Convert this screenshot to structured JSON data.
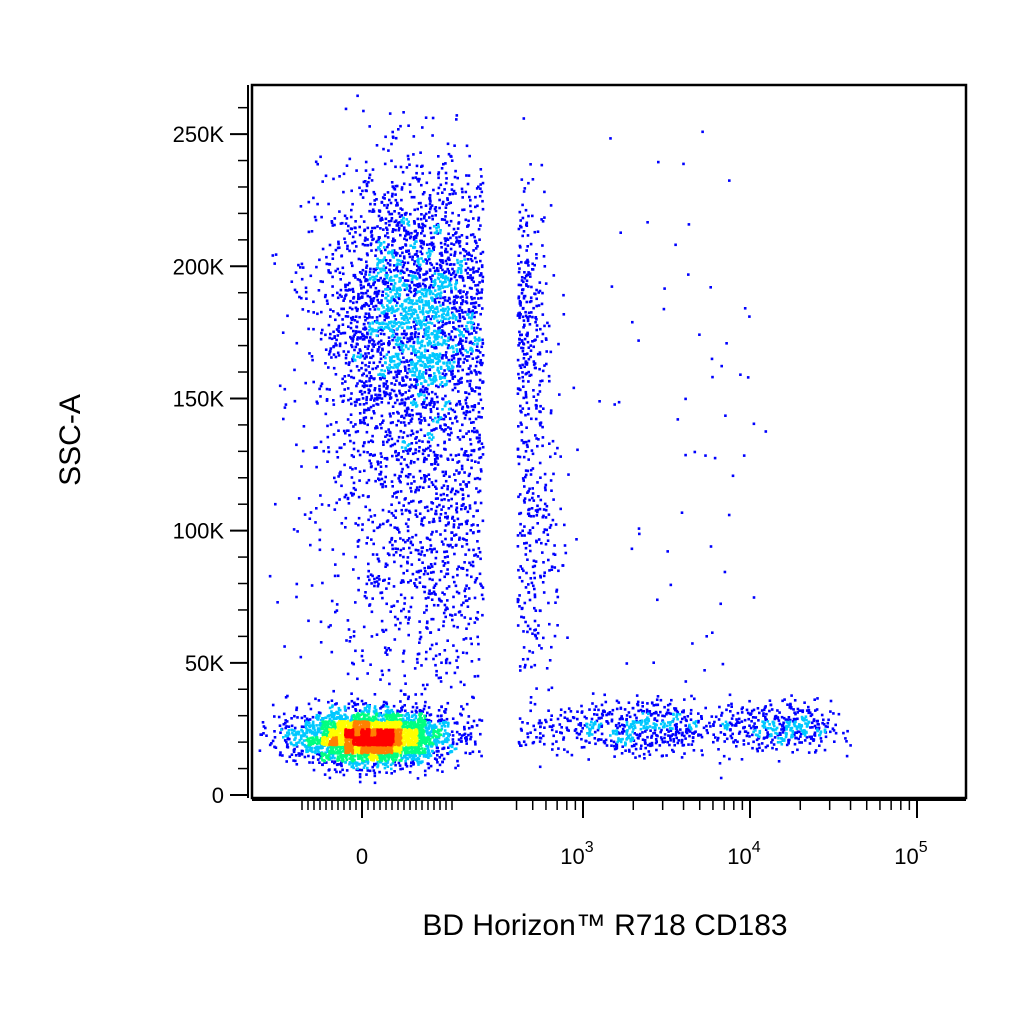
{
  "chart_data": {
    "type": "scatter",
    "style": "flow-cytometry pseudocolor density dot plot",
    "title": "",
    "xlabel": "BD Horizon™ R718 CD183",
    "ylabel": "SSC-A",
    "x_scale": "biexponential",
    "y_scale": "linear",
    "ylim": [
      0,
      262144
    ],
    "y_ticks": [
      {
        "value": 0,
        "label": "0"
      },
      {
        "value": 50000,
        "label": "50K"
      },
      {
        "value": 100000,
        "label": "100K"
      },
      {
        "value": 150000,
        "label": "150K"
      },
      {
        "value": 200000,
        "label": "200K"
      },
      {
        "value": 250000,
        "label": "250K"
      }
    ],
    "x_ticks": [
      {
        "value": 0,
        "label_base": "0",
        "label_exp": ""
      },
      {
        "value": 1000,
        "label_base": "10",
        "label_exp": "3"
      },
      {
        "value": 10000,
        "label_base": "10",
        "label_exp": "4"
      },
      {
        "value": 100000,
        "label_base": "10",
        "label_exp": "5"
      }
    ],
    "grid": false,
    "legend": "none",
    "density_colors": [
      "#0000ff",
      "#00c8ff",
      "#00ff80",
      "#ffff00",
      "#ff8000",
      "#ff0000"
    ],
    "populations": [
      {
        "x_center": 30,
        "x_spread": 120,
        "y_center": 22000,
        "y_spread": 5000,
        "share": 0.38
      },
      {
        "x_center": 180,
        "x_spread": 160,
        "y_center": 180000,
        "y_spread": 28000,
        "share": 0.36
      },
      {
        "x_center": 250,
        "x_spread": 200,
        "y_center": 95000,
        "y_spread": 30000,
        "share": 0.12
      },
      {
        "x_center": 1500,
        "x_spread": 1500,
        "y_center": 26000,
        "y_spread": 5000,
        "share": 0.07
      },
      {
        "x_center": 12000,
        "x_spread": 9000,
        "y_center": 26000,
        "y_spread": 5000,
        "share": 0.06
      },
      {
        "x_center": 3000,
        "x_spread": 3500,
        "y_center": 140000,
        "y_spread": 60000,
        "share": 0.01
      }
    ]
  }
}
